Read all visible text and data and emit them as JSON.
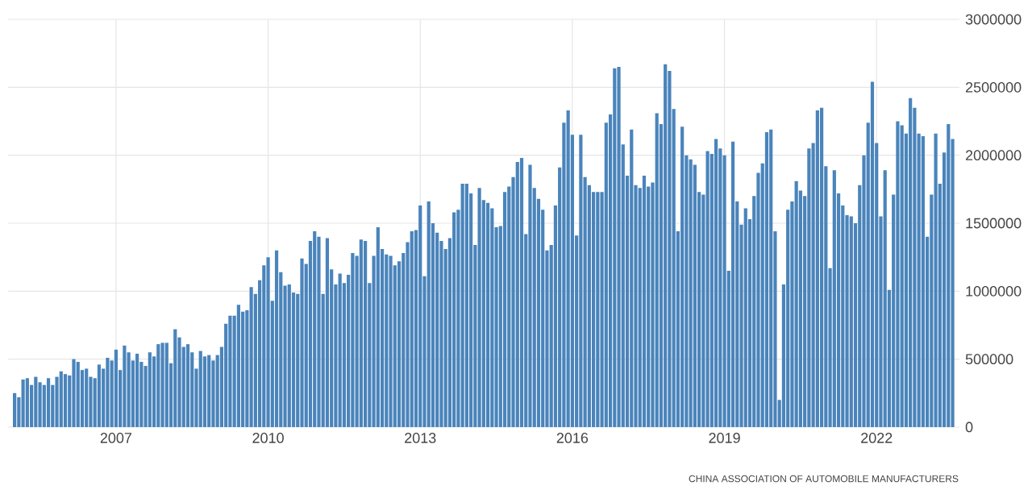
{
  "chart_data": {
    "type": "bar",
    "annotations": [
      "CHINA ASSOCIATION OF AUTOMOBILE MANUFACTURERS"
    ],
    "x": [
      "2005-01",
      "2005-02",
      "2005-03",
      "2005-04",
      "2005-05",
      "2005-06",
      "2005-07",
      "2005-08",
      "2005-09",
      "2005-10",
      "2005-11",
      "2005-12",
      "2006-01",
      "2006-02",
      "2006-03",
      "2006-04",
      "2006-05",
      "2006-06",
      "2006-07",
      "2006-08",
      "2006-09",
      "2006-10",
      "2006-11",
      "2006-12",
      "2007-01",
      "2007-02",
      "2007-03",
      "2007-04",
      "2007-05",
      "2007-06",
      "2007-07",
      "2007-08",
      "2007-09",
      "2007-10",
      "2007-11",
      "2007-12",
      "2008-01",
      "2008-02",
      "2008-03",
      "2008-04",
      "2008-05",
      "2008-06",
      "2008-07",
      "2008-08",
      "2008-09",
      "2008-10",
      "2008-11",
      "2008-12",
      "2009-01",
      "2009-02",
      "2009-03",
      "2009-04",
      "2009-05",
      "2009-06",
      "2009-07",
      "2009-08",
      "2009-09",
      "2009-10",
      "2009-11",
      "2009-12",
      "2010-01",
      "2010-02",
      "2010-03",
      "2010-04",
      "2010-05",
      "2010-06",
      "2010-07",
      "2010-08",
      "2010-09",
      "2010-10",
      "2010-11",
      "2010-12",
      "2011-01",
      "2011-02",
      "2011-03",
      "2011-04",
      "2011-05",
      "2011-06",
      "2011-07",
      "2011-08",
      "2011-09",
      "2011-10",
      "2011-11",
      "2011-12",
      "2012-01",
      "2012-02",
      "2012-03",
      "2012-04",
      "2012-05",
      "2012-06",
      "2012-07",
      "2012-08",
      "2012-09",
      "2012-10",
      "2012-11",
      "2012-12",
      "2013-01",
      "2013-02",
      "2013-03",
      "2013-04",
      "2013-05",
      "2013-06",
      "2013-07",
      "2013-08",
      "2013-09",
      "2013-10",
      "2013-11",
      "2013-12",
      "2014-01",
      "2014-02",
      "2014-03",
      "2014-04",
      "2014-05",
      "2014-06",
      "2014-07",
      "2014-08",
      "2014-09",
      "2014-10",
      "2014-11",
      "2014-12",
      "2015-01",
      "2015-02",
      "2015-03",
      "2015-04",
      "2015-05",
      "2015-06",
      "2015-07",
      "2015-08",
      "2015-09",
      "2015-10",
      "2015-11",
      "2015-12",
      "2016-01",
      "2016-02",
      "2016-03",
      "2016-04",
      "2016-05",
      "2016-06",
      "2016-07",
      "2016-08",
      "2016-09",
      "2016-10",
      "2016-11",
      "2016-12",
      "2017-01",
      "2017-02",
      "2017-03",
      "2017-04",
      "2017-05",
      "2017-06",
      "2017-07",
      "2017-08",
      "2017-09",
      "2017-10",
      "2017-11",
      "2017-12",
      "2018-01",
      "2018-02",
      "2018-03",
      "2018-04",
      "2018-05",
      "2018-06",
      "2018-07",
      "2018-08",
      "2018-09",
      "2018-10",
      "2018-11",
      "2018-12",
      "2019-01",
      "2019-02",
      "2019-03",
      "2019-04",
      "2019-05",
      "2019-06",
      "2019-07",
      "2019-08",
      "2019-09",
      "2019-10",
      "2019-11",
      "2019-12",
      "2020-01",
      "2020-02",
      "2020-03",
      "2020-04",
      "2020-05",
      "2020-06",
      "2020-07",
      "2020-08",
      "2020-09",
      "2020-10",
      "2020-11",
      "2020-12",
      "2021-01",
      "2021-02",
      "2021-03",
      "2021-04",
      "2021-05",
      "2021-06",
      "2021-07",
      "2021-08",
      "2021-09",
      "2021-10",
      "2021-11",
      "2021-12",
      "2022-01",
      "2022-02",
      "2022-03",
      "2022-04",
      "2022-05",
      "2022-06",
      "2022-07",
      "2022-08",
      "2022-09",
      "2022-10",
      "2022-11",
      "2022-12",
      "2023-01",
      "2023-02",
      "2023-03",
      "2023-04",
      "2023-05",
      "2023-06",
      "2023-07"
    ],
    "values": [
      250000,
      220000,
      350000,
      360000,
      310000,
      370000,
      330000,
      310000,
      360000,
      310000,
      370000,
      410000,
      390000,
      380000,
      500000,
      480000,
      420000,
      430000,
      370000,
      360000,
      460000,
      430000,
      510000,
      490000,
      570000,
      420000,
      600000,
      550000,
      490000,
      540000,
      480000,
      450000,
      550000,
      520000,
      610000,
      620000,
      620000,
      470000,
      720000,
      660000,
      590000,
      610000,
      550000,
      430000,
      560000,
      520000,
      530000,
      490000,
      530000,
      590000,
      760000,
      820000,
      820000,
      900000,
      850000,
      860000,
      1030000,
      980000,
      1080000,
      1190000,
      1250000,
      930000,
      1300000,
      1140000,
      1040000,
      1050000,
      990000,
      980000,
      1240000,
      1200000,
      1370000,
      1440000,
      1400000,
      980000,
      1390000,
      1160000,
      1050000,
      1130000,
      1060000,
      1120000,
      1280000,
      1260000,
      1380000,
      1370000,
      1060000,
      1260000,
      1470000,
      1310000,
      1270000,
      1260000,
      1190000,
      1220000,
      1280000,
      1360000,
      1440000,
      1450000,
      1630000,
      1110000,
      1660000,
      1500000,
      1430000,
      1370000,
      1310000,
      1390000,
      1580000,
      1600000,
      1790000,
      1790000,
      1720000,
      1340000,
      1760000,
      1670000,
      1650000,
      1610000,
      1470000,
      1480000,
      1730000,
      1770000,
      1840000,
      1950000,
      1980000,
      1420000,
      1930000,
      1760000,
      1680000,
      1600000,
      1300000,
      1340000,
      1630000,
      1910000,
      2240000,
      2330000,
      2150000,
      1410000,
      2150000,
      1840000,
      1780000,
      1730000,
      1730000,
      1730000,
      2240000,
      2300000,
      2640000,
      2650000,
      2080000,
      1850000,
      2190000,
      1780000,
      1760000,
      1850000,
      1770000,
      1800000,
      2310000,
      2230000,
      2670000,
      2620000,
      2340000,
      1440000,
      2210000,
      2000000,
      1970000,
      1930000,
      1730000,
      1710000,
      2030000,
      2010000,
      2120000,
      2050000,
      2000000,
      1150000,
      2100000,
      1660000,
      1490000,
      1610000,
      1530000,
      1700000,
      1870000,
      1940000,
      2170000,
      2190000,
      1440000,
      200000,
      1050000,
      1600000,
      1660000,
      1810000,
      1740000,
      1700000,
      2050000,
      2090000,
      2330000,
      2350000,
      1920000,
      1170000,
      1890000,
      1720000,
      1630000,
      1560000,
      1550000,
      1500000,
      1780000,
      2000000,
      2240000,
      2540000,
      2090000,
      1550000,
      1890000,
      1010000,
      1710000,
      2250000,
      2220000,
      2160000,
      2420000,
      2350000,
      2160000,
      2140000,
      1400000,
      1710000,
      2160000,
      1790000,
      2020000,
      2230000,
      2120000
    ],
    "color": "#4a84bb",
    "xlim": [
      "2004-11-15",
      "2023-08-20"
    ],
    "xticks": [
      "2007",
      "2010",
      "2013",
      "2016",
      "2019",
      "2022"
    ],
    "ylim": [
      0,
      3000000
    ],
    "yticks": [
      0,
      500000,
      1000000,
      1500000,
      2000000,
      2500000,
      3000000
    ],
    "grid": true
  }
}
